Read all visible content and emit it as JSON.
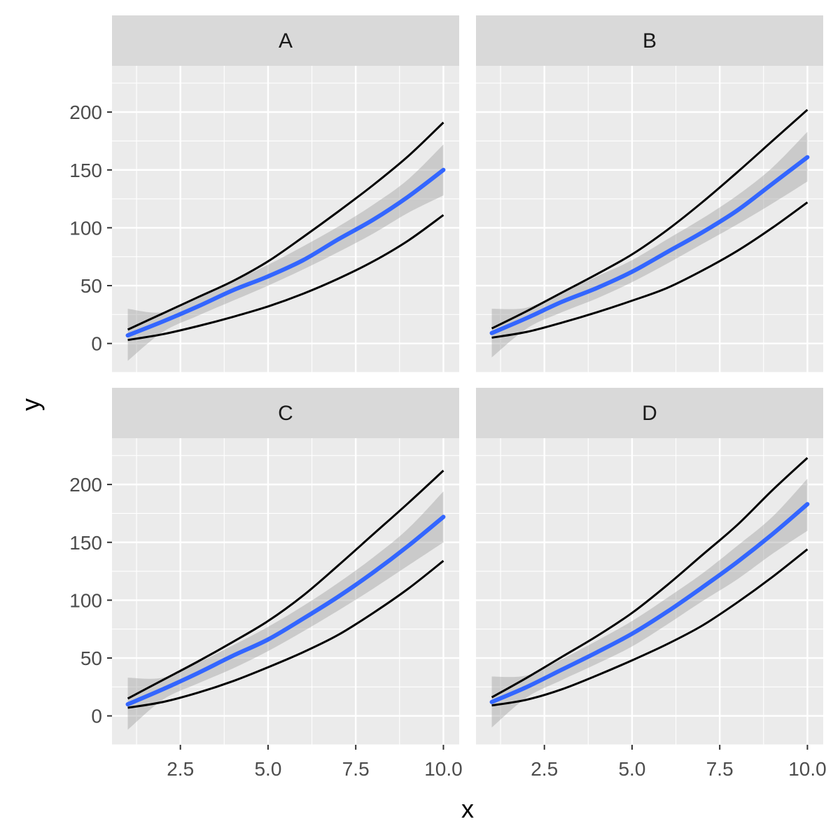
{
  "chart_data": {
    "type": "line",
    "xlabel": "x",
    "ylabel": "y",
    "xlim": [
      0.55,
      10.45
    ],
    "ylim": [
      -25,
      240
    ],
    "x_ticks": [
      2.5,
      5.0,
      7.5,
      10.0
    ],
    "x_tick_labels": [
      "2.5",
      "5.0",
      "7.5",
      "10.0"
    ],
    "y_ticks": [
      0,
      50,
      100,
      150,
      200
    ],
    "y_tick_labels": [
      "0",
      "50",
      "100",
      "150",
      "200"
    ],
    "grid": true,
    "colors": {
      "panel_bg": "#EBEBEB",
      "strip_bg": "#D9D9D9",
      "grid_major": "#FFFFFF",
      "fit_line": "#3366FF",
      "ribbon": "#999999",
      "bound_line": "#000000"
    },
    "x": [
      1,
      2,
      3,
      4,
      5,
      6,
      7,
      8,
      9,
      10
    ],
    "panels": [
      {
        "label": "A",
        "series": [
          {
            "role": "fit",
            "values": [
              7,
              19,
              32,
              46,
              58,
              72,
              90,
              107,
              127,
              150
            ]
          },
          {
            "role": "ribbon_lower",
            "values": [
              -15,
              10,
              24,
              37,
              50,
              64,
              79,
              95,
              113,
              128
            ]
          },
          {
            "role": "ribbon_upper",
            "values": [
              30,
              27,
              40,
              54,
              68,
              84,
              101,
              120,
              142,
              172
            ]
          },
          {
            "role": "upper_bound",
            "values": [
              12,
              26,
              40,
              54,
              71,
              92,
              114,
              137,
              162,
              191
            ]
          },
          {
            "role": "lower_bound",
            "values": [
              3,
              8,
              15,
              23,
              32,
              43,
              56,
              71,
              89,
              111
            ]
          }
        ]
      },
      {
        "label": "B",
        "series": [
          {
            "role": "fit",
            "values": [
              9,
              22,
              36,
              48,
              62,
              79,
              96,
              115,
              138,
              161
            ]
          },
          {
            "role": "ribbon_lower",
            "values": [
              -12,
              13,
              27,
              39,
              53,
              69,
              86,
              103,
              121,
              140
            ]
          },
          {
            "role": "ribbon_upper",
            "values": [
              30,
              31,
              44,
              58,
              72,
              90,
              108,
              128,
              152,
              183
            ]
          },
          {
            "role": "upper_bound",
            "values": [
              13,
              28,
              44,
              60,
              77,
              98,
              122,
              148,
              175,
              202
            ]
          },
          {
            "role": "lower_bound",
            "values": [
              5,
              10,
              18,
              27,
              37,
              48,
              63,
              80,
              100,
              122
            ]
          }
        ]
      },
      {
        "label": "C",
        "series": [
          {
            "role": "fit",
            "values": [
              10,
              23,
              37,
              52,
              66,
              84,
              103,
              124,
              147,
              172
            ]
          },
          {
            "role": "ribbon_lower",
            "values": [
              -12,
              14,
              28,
              41,
              56,
              73,
              91,
              110,
              130,
              150
            ]
          },
          {
            "role": "ribbon_upper",
            "values": [
              33,
              33,
              46,
              61,
              77,
              95,
              115,
              137,
              162,
              194
            ]
          },
          {
            "role": "upper_bound",
            "values": [
              15,
              31,
              47,
              64,
              82,
              104,
              130,
              157,
              184,
              212
            ]
          },
          {
            "role": "lower_bound",
            "values": [
              7,
              12,
              20,
              30,
              42,
              55,
              70,
              89,
              110,
              134
            ]
          }
        ]
      },
      {
        "label": "D",
        "series": [
          {
            "role": "fit",
            "values": [
              12,
              25,
              40,
              55,
              71,
              90,
              111,
              133,
              157,
              183
            ]
          },
          {
            "role": "ribbon_lower",
            "values": [
              -10,
              16,
              31,
              45,
              60,
              79,
              99,
              118,
              140,
              160
            ]
          },
          {
            "role": "ribbon_upper",
            "values": [
              34,
              35,
              49,
              65,
              82,
              102,
              123,
              147,
              172,
              205
            ]
          },
          {
            "role": "upper_bound",
            "values": [
              16,
              33,
              51,
              69,
              89,
              113,
              139,
              165,
              195,
              223
            ]
          },
          {
            "role": "lower_bound",
            "values": [
              9,
              14,
              23,
              35,
              48,
              62,
              78,
              98,
              120,
              144
            ]
          }
        ]
      }
    ]
  }
}
